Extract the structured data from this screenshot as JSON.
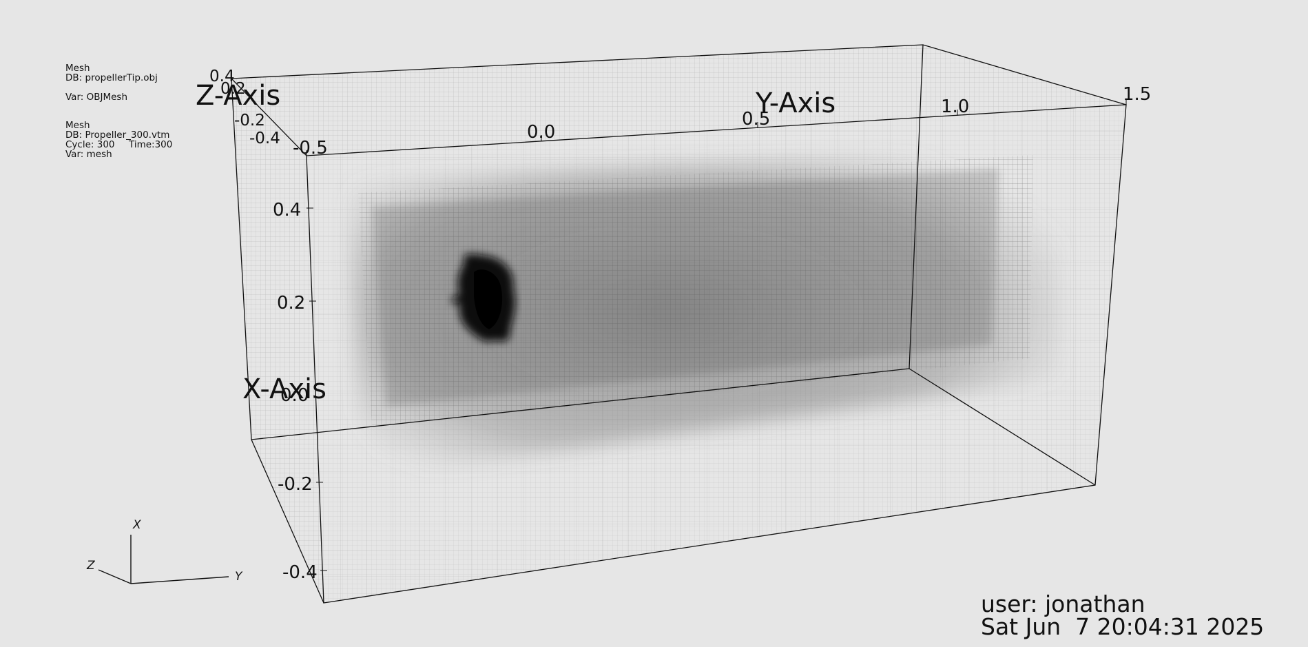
{
  "legends": {
    "obj": {
      "plot_type": "Mesh",
      "db": "DB: propellerTip.obj",
      "var": "Var: OBJMesh"
    },
    "vtm": {
      "plot_type": "Mesh",
      "db": "DB: Propeller_300.vtm",
      "cycle": "Cycle: 300",
      "time": "Time:300",
      "var": "Var: mesh"
    }
  },
  "axes": {
    "x_title": "X-Axis",
    "y_title": "Y-Axis",
    "z_title": "Z-Axis",
    "x_ticks": [
      "0.4",
      "0.2",
      "0.0",
      "-0.2",
      "-0.4"
    ],
    "y_ticks": [
      "-0.5",
      "0.0",
      "0.5",
      "1.0",
      "1.5"
    ],
    "z_ticks": [
      "0.4",
      "0.2",
      "-0.2",
      "-0.4"
    ]
  },
  "triad": {
    "x": "X",
    "y": "Y",
    "z": "Z"
  },
  "user": {
    "name_line": "user: jonathan",
    "date_line": "Sat Jun  7 20:04:31 2025"
  },
  "colors": {
    "background": "#e6e6e6",
    "mesh": "#3a3a3a",
    "text": "#111111"
  }
}
